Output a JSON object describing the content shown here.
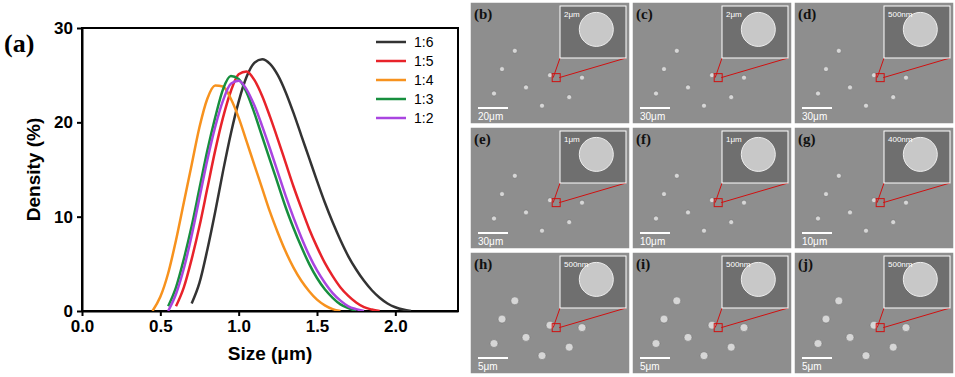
{
  "chart_data": {
    "type": "line",
    "title": "(a)",
    "x_label": "Size (μm)",
    "y_label": "Density (%)",
    "xlim": [
      0,
      2.4
    ],
    "ylim": [
      0,
      30
    ],
    "xticks": [
      {
        "value": 0,
        "label": "0.0"
      },
      {
        "value": 0.5,
        "label": "0.5"
      },
      {
        "value": 1,
        "label": "1.0"
      },
      {
        "value": 1.5,
        "label": "1.5"
      },
      {
        "value": 2,
        "label": "2.0"
      }
    ],
    "yticks": [
      0,
      10,
      20,
      30
    ],
    "legend": "upper right",
    "x": [
      0.4,
      0.45,
      0.5,
      0.55,
      0.6,
      0.65,
      0.7,
      0.75,
      0.8,
      0.85,
      0.9,
      0.95,
      1.0,
      1.05,
      1.1,
      1.15,
      1.2,
      1.25,
      1.3,
      1.35,
      1.4,
      1.45,
      1.5,
      1.55,
      1.6,
      1.65,
      1.7,
      1.75,
      1.8,
      1.85,
      1.9,
      1.95,
      2.0,
      2.05,
      2.1,
      2.15,
      2.2
    ],
    "series": [
      {
        "name": "1:6",
        "color": "#333333",
        "values": [
          null,
          null,
          null,
          null,
          null,
          null,
          0.8,
          3,
          6.5,
          10.5,
          14.8,
          18.8,
          22.2,
          24.8,
          26.3,
          26.7,
          26.2,
          25,
          23.2,
          21,
          18.6,
          16.2,
          13.8,
          11.5,
          9.4,
          7.5,
          5.8,
          4.4,
          3.2,
          2.2,
          1.4,
          0.8,
          0.4,
          0.15,
          0,
          null,
          null
        ]
      },
      {
        "name": "1:5",
        "color": "#e8232a",
        "values": [
          null,
          null,
          null,
          null,
          0.5,
          2.5,
          5.5,
          9,
          13,
          17,
          20.5,
          23.3,
          25.1,
          25.4,
          24.5,
          22.8,
          20.6,
          18.2,
          15.7,
          13.2,
          10.9,
          8.7,
          6.8,
          5.1,
          3.7,
          2.5,
          1.6,
          0.9,
          0.4,
          0.15,
          0,
          null,
          null,
          null,
          null,
          null,
          null
        ]
      },
      {
        "name": "1:4",
        "color": "#f7921e",
        "values": [
          null,
          0,
          1.5,
          4,
          7.5,
          11.5,
          15.5,
          19.5,
          22.5,
          23.9,
          23.8,
          22.5,
          20.5,
          18,
          15.5,
          13,
          10.5,
          8.3,
          6.3,
          4.6,
          3.2,
          2.1,
          1.2,
          0.6,
          0.2,
          0,
          null,
          null,
          null,
          null,
          null,
          null,
          null,
          null,
          null,
          null,
          null
        ]
      },
      {
        "name": "1:3",
        "color": "#178f3e",
        "values": [
          null,
          null,
          null,
          0.5,
          2.5,
          5.5,
          9,
          13,
          17,
          20.5,
          23.5,
          24.9,
          24.6,
          23.2,
          21,
          18.5,
          16,
          13.5,
          11,
          8.8,
          6.8,
          5,
          3.5,
          2.3,
          1.4,
          0.7,
          0.3,
          0,
          null,
          null,
          null,
          null,
          null,
          null,
          null,
          null,
          null
        ]
      },
      {
        "name": "1:2",
        "color": "#a945e0",
        "values": [
          null,
          null,
          null,
          0,
          1.8,
          4.5,
          8,
          12,
          16,
          19.5,
          22.3,
          24.1,
          24.4,
          23.5,
          21.8,
          19.6,
          17.2,
          14.7,
          12.2,
          9.9,
          7.8,
          5.9,
          4.3,
          3,
          1.9,
          1.1,
          0.5,
          0.2,
          0,
          null,
          null,
          null,
          null,
          null,
          null,
          null,
          null
        ]
      }
    ]
  },
  "panels": [
    {
      "label": "(b)",
      "scale_bar": "20μm",
      "inset_scale_bar": "2μm"
    },
    {
      "label": "(c)",
      "scale_bar": "30μm",
      "inset_scale_bar": "2μm"
    },
    {
      "label": "(d)",
      "scale_bar": "30μm",
      "inset_scale_bar": "500nm"
    },
    {
      "label": "(e)",
      "scale_bar": "30μm",
      "inset_scale_bar": "1μm"
    },
    {
      "label": "(f)",
      "scale_bar": "10μm",
      "inset_scale_bar": "1μm"
    },
    {
      "label": "(g)",
      "scale_bar": "10μm",
      "inset_scale_bar": "400nm"
    },
    {
      "label": "(h)",
      "scale_bar": "5μm",
      "inset_scale_bar": "500nm"
    },
    {
      "label": "(i)",
      "scale_bar": "5μm",
      "inset_scale_bar": "500nm"
    },
    {
      "label": "(j)",
      "scale_bar": "5μm",
      "inset_scale_bar": "500nm"
    }
  ]
}
